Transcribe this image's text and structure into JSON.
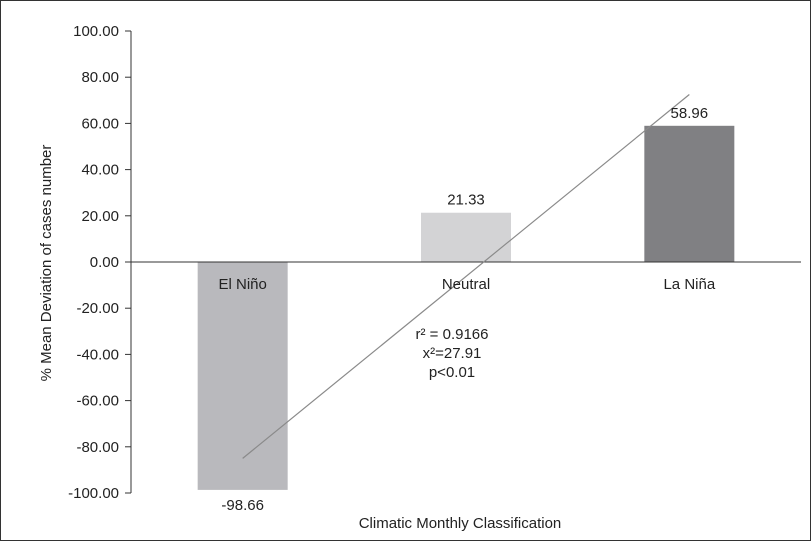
{
  "chart_data": {
    "type": "bar",
    "categories": [
      "El Niño",
      "Neutral",
      "La Niña"
    ],
    "values": [
      -98.66,
      21.33,
      58.96
    ],
    "value_labels": [
      "-98.66",
      "21.33",
      "58.96"
    ],
    "bar_colors": [
      "#b9b9bd",
      "#d3d3d5",
      "#808083"
    ],
    "xlabel": "Climatic Monthly Classification",
    "ylabel": "% Mean Deviation of cases number",
    "ylim": [
      -100,
      100
    ],
    "yticks": [
      100,
      80,
      60,
      40,
      20,
      0,
      -20,
      -40,
      -60,
      -80,
      -100
    ],
    "ytick_labels": [
      "100.00",
      "80.00",
      "60.00",
      "40.00",
      "20.00",
      "0.00",
      "-20.00",
      "-40.00",
      "-60.00",
      "-80.00",
      "-100.00"
    ],
    "grid": false,
    "trendline": {
      "color": "#8a8a8a",
      "from": [
        1,
        -85
      ],
      "to": [
        3,
        72.5
      ]
    },
    "annotations": [
      "r² = 0.9166",
      "x²=27.91",
      "p<0.01"
    ]
  }
}
